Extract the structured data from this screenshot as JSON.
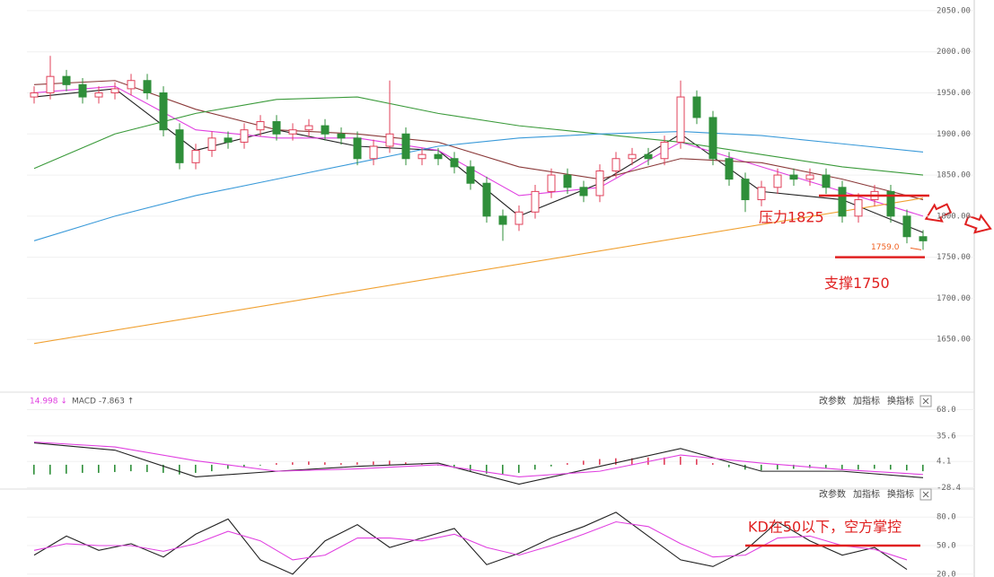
{
  "chart_data": [
    {
      "type": "candlestick",
      "open": [
        1945,
        1950,
        1970,
        1960,
        1945,
        1950,
        1955,
        1965,
        1950,
        1905,
        1865,
        1880,
        1895,
        1890,
        1905,
        1915,
        1900,
        1905,
        1910,
        1900,
        1895,
        1870,
        1885,
        1900,
        1870,
        1875,
        1870,
        1860,
        1840,
        1800,
        1790,
        1805,
        1830,
        1850,
        1835,
        1825,
        1855,
        1870,
        1875,
        1870,
        1890,
        1945,
        1920,
        1870,
        1845,
        1820,
        1835,
        1850,
        1845,
        1850,
        1835,
        1800,
        1820,
        1830,
        1800,
        1775
      ],
      "high": [
        1958,
        1995,
        1978,
        1968,
        1958,
        1963,
        1973,
        1973,
        1958,
        1913,
        1888,
        1903,
        1903,
        1913,
        1923,
        1923,
        1913,
        1918,
        1918,
        1908,
        1903,
        1893,
        1965,
        1908,
        1883,
        1883,
        1878,
        1868,
        1848,
        1808,
        1813,
        1838,
        1858,
        1858,
        1843,
        1863,
        1878,
        1883,
        1883,
        1898,
        1965,
        1953,
        1928,
        1878,
        1853,
        1843,
        1858,
        1858,
        1858,
        1858,
        1843,
        1828,
        1838,
        1838,
        1808,
        1783
      ],
      "low": [
        1937,
        1942,
        1952,
        1937,
        1937,
        1942,
        1947,
        1942,
        1897,
        1857,
        1857,
        1872,
        1882,
        1882,
        1897,
        1892,
        1892,
        1897,
        1892,
        1887,
        1862,
        1862,
        1877,
        1862,
        1862,
        1862,
        1852,
        1832,
        1792,
        1770,
        1782,
        1797,
        1822,
        1827,
        1817,
        1817,
        1847,
        1862,
        1862,
        1862,
        1882,
        1912,
        1862,
        1837,
        1805,
        1812,
        1827,
        1837,
        1837,
        1827,
        1792,
        1792,
        1812,
        1792,
        1767,
        1759
      ],
      "close": [
        1950,
        1970,
        1960,
        1945,
        1950,
        1955,
        1965,
        1950,
        1905,
        1865,
        1880,
        1895,
        1890,
        1905,
        1915,
        1900,
        1905,
        1910,
        1900,
        1895,
        1870,
        1885,
        1900,
        1870,
        1875,
        1870,
        1860,
        1840,
        1800,
        1790,
        1805,
        1830,
        1850,
        1835,
        1825,
        1855,
        1870,
        1875,
        1870,
        1890,
        1945,
        1920,
        1870,
        1845,
        1820,
        1835,
        1850,
        1845,
        1850,
        1835,
        1800,
        1820,
        1830,
        1800,
        1775,
        1770
      ],
      "up_color": "#e0405a",
      "down_color": "#2f8f3a",
      "lines": [
        {
          "color": "#222222",
          "x": [
            0,
            5,
            10,
            15,
            20,
            25,
            30,
            35,
            40,
            45,
            50,
            55
          ],
          "values": [
            1945,
            1955,
            1880,
            1905,
            1885,
            1880,
            1800,
            1840,
            1900,
            1830,
            1820,
            1780
          ]
        },
        {
          "color": "#e040e0",
          "x": [
            0,
            5,
            10,
            15,
            20,
            25,
            30,
            35,
            40,
            45,
            50,
            55
          ],
          "values": [
            1950,
            1958,
            1905,
            1895,
            1895,
            1880,
            1825,
            1835,
            1890,
            1860,
            1830,
            1800
          ]
        },
        {
          "color": "#8b3a3a",
          "x": [
            0,
            5,
            10,
            15,
            20,
            25,
            30,
            35,
            40,
            45,
            50,
            55
          ],
          "values": [
            1960,
            1965,
            1930,
            1905,
            1900,
            1890,
            1860,
            1845,
            1870,
            1865,
            1845,
            1820
          ]
        },
        {
          "color": "#3a9a3a",
          "x": [
            0,
            5,
            10,
            15,
            20,
            25,
            30,
            35,
            40,
            45,
            50,
            55
          ],
          "values": [
            1858,
            1900,
            1925,
            1942,
            1945,
            1925,
            1910,
            1900,
            1890,
            1875,
            1860,
            1850
          ]
        },
        {
          "color": "#3a9ad9",
          "x": [
            0,
            5,
            10,
            15,
            20,
            25,
            30,
            35,
            40,
            45,
            50,
            55
          ],
          "values": [
            1770,
            1800,
            1825,
            1845,
            1865,
            1885,
            1895,
            1900,
            1903,
            1898,
            1888,
            1878
          ]
        },
        {
          "color": "#f0a030",
          "x": [
            0,
            55
          ],
          "values": [
            1645,
            1822
          ]
        }
      ],
      "ylim": [
        1588,
        2063
      ],
      "yticks": [
        {
          "value": 1650,
          "label": "1650.00"
        },
        {
          "value": 1700,
          "label": "1700.00"
        },
        {
          "value": 1750,
          "label": "1750.00"
        },
        {
          "value": 1800,
          "label": "1800.00"
        },
        {
          "value": 1850,
          "label": "1850.00"
        },
        {
          "value": 1900,
          "label": "1900.00"
        },
        {
          "value": 1950,
          "label": "1950.00"
        },
        {
          "value": 2000,
          "label": "2000.00"
        },
        {
          "value": 2050,
          "label": "2050.00"
        }
      ],
      "grid": true,
      "low_label": "1759.0",
      "annotations": [
        {
          "text": "压力1825",
          "value": 1825,
          "color": "#e02020"
        },
        {
          "text": "支撑1750",
          "value": 1750,
          "color": "#e02020"
        }
      ]
    },
    {
      "type": "macd",
      "legend": [
        "14.998 ↓",
        "MACD -7.863 ↑"
      ],
      "buttons": [
        "改参数",
        "加指标",
        "换指标"
      ],
      "histogram": [
        -12,
        -12,
        -11,
        -10,
        -10,
        -9,
        -8,
        -9,
        -10,
        -12,
        -10,
        -8,
        -5,
        -3,
        -1,
        2,
        3,
        4,
        3,
        2,
        3,
        4,
        5,
        3,
        1,
        -1,
        -4,
        -8,
        -11,
        -12,
        -10,
        -6,
        -2,
        2,
        5,
        7,
        8,
        8,
        9,
        9,
        10,
        7,
        2,
        -3,
        -6,
        -7,
        -6,
        -5,
        -4,
        -4,
        -6,
        -6,
        -5,
        -6,
        -7,
        -8
      ],
      "up_color": "#e0405a",
      "down_color": "#2f8f3a",
      "lines": [
        {
          "color": "#222222",
          "x": [
            0,
            5,
            10,
            15,
            20,
            25,
            30,
            35,
            40,
            45,
            50,
            55
          ],
          "values": [
            27,
            18,
            -15,
            -8,
            -2,
            2,
            -24,
            -2,
            20,
            -8,
            -8,
            -16
          ]
        },
        {
          "color": "#e040e0",
          "x": [
            0,
            5,
            10,
            15,
            20,
            25,
            30,
            35,
            40,
            45,
            50,
            55
          ],
          "values": [
            28,
            22,
            5,
            -8,
            -5,
            0,
            -15,
            -8,
            12,
            2,
            -6,
            -12
          ]
        }
      ],
      "ylim": [
        -30,
        73
      ],
      "yticks": [
        {
          "value": -28.4,
          "label": "-28.4"
        },
        4.1,
        35.6,
        {
          "value": 68,
          "label": "68.0"
        }
      ]
    },
    {
      "type": "kd",
      "buttons": [
        "改参数",
        "加指标",
        "换指标"
      ],
      "lines": [
        {
          "color": "#222222",
          "x": [
            0,
            2,
            4,
            6,
            8,
            10,
            12,
            14,
            16,
            18,
            20,
            22,
            24,
            26,
            28,
            30,
            32,
            34,
            36,
            38,
            40,
            42,
            44,
            46,
            48,
            50,
            52,
            54
          ],
          "values": [
            40,
            60,
            45,
            52,
            38,
            62,
            78,
            35,
            20,
            55,
            72,
            48,
            58,
            68,
            30,
            42,
            58,
            70,
            85,
            60,
            35,
            28,
            45,
            75,
            55,
            40,
            48,
            25
          ]
        },
        {
          "color": "#e040e0",
          "x": [
            0,
            2,
            4,
            6,
            8,
            10,
            12,
            14,
            16,
            18,
            20,
            22,
            24,
            26,
            28,
            30,
            32,
            34,
            36,
            38,
            40,
            42,
            44,
            46,
            48,
            50,
            52,
            54
          ],
          "values": [
            45,
            52,
            50,
            50,
            44,
            52,
            65,
            55,
            35,
            40,
            58,
            58,
            55,
            62,
            48,
            40,
            50,
            62,
            75,
            70,
            52,
            38,
            40,
            58,
            60,
            50,
            46,
            35
          ]
        }
      ],
      "ylim": [
        17,
        100
      ],
      "yticks": [
        {
          "value": 20,
          "label": "20.0"
        },
        {
          "value": 50,
          "label": "50.0"
        },
        {
          "value": 80,
          "label": "80.0"
        }
      ],
      "annotations": [
        {
          "text": "KD在50以下，空方掌控",
          "value": 50,
          "color": "#e02020"
        }
      ]
    }
  ]
}
